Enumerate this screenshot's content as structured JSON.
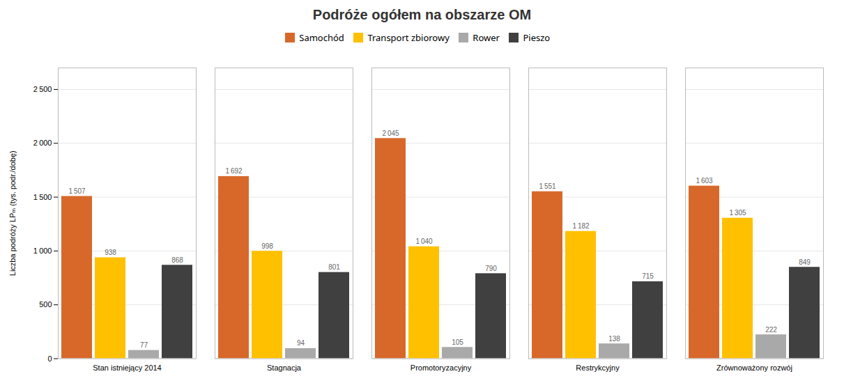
{
  "chart_data": {
    "type": "bar",
    "title": "Podróże ogółem na obszarze OM",
    "ylabel": "Liczba podróży LPₘ (tys. podr./dobę)",
    "categories": [
      "Stan istniejący 2014",
      "Stagnacja",
      "Promotoryzacyjny",
      "Restrykcyjny",
      "Zrównoważony rozwój"
    ],
    "series": [
      {
        "name": "Samochód",
        "color": "#D8682A",
        "values": [
          1507,
          1692,
          2045,
          1551,
          1603
        ],
        "value_labels": [
          "1 507",
          "1 692",
          "2 045",
          "1 551",
          "1 603"
        ]
      },
      {
        "name": "Transport zbiorowy",
        "color": "#FFC000",
        "values": [
          938,
          998,
          1040,
          1182,
          1305
        ],
        "value_labels": [
          "938",
          "998",
          "1 040",
          "1 182",
          "1 305"
        ]
      },
      {
        "name": "Rower",
        "color": "#A9A9A9",
        "values": [
          77,
          94,
          105,
          138,
          222
        ],
        "value_labels": [
          "77",
          "94",
          "105",
          "138",
          "222"
        ]
      },
      {
        "name": "Pieszo",
        "color": "#404040",
        "values": [
          868,
          801,
          790,
          715,
          849
        ],
        "value_labels": [
          "868",
          "801",
          "790",
          "715",
          "849"
        ]
      }
    ],
    "ylim": [
      0,
      2700
    ],
    "yticks": [
      0,
      500,
      {
        "value": 1000,
        "label": "1 000"
      },
      {
        "value": 1500,
        "label": "1 500"
      },
      {
        "value": 2000,
        "label": "2 000"
      },
      {
        "value": 2500,
        "label": "2 500"
      }
    ],
    "grid": true,
    "legend": "top",
    "data_labels": true
  }
}
